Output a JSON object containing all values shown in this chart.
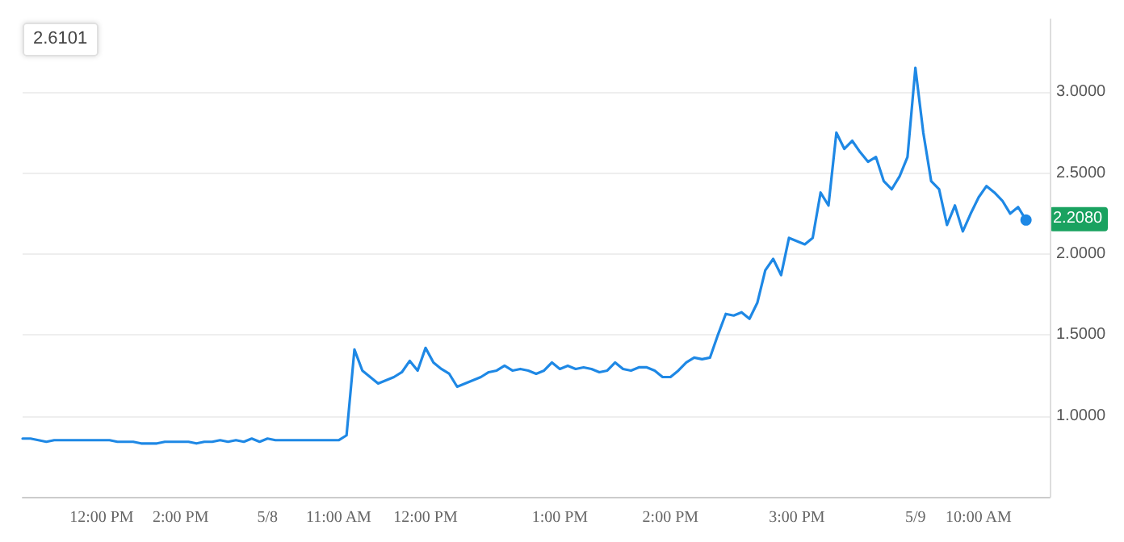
{
  "chart_data": {
    "type": "line",
    "categories": [
      null,
      null,
      null,
      null,
      null,
      null,
      null,
      null,
      null,
      null,
      "12:00 PM",
      null,
      null,
      null,
      null,
      null,
      null,
      null,
      null,
      null,
      "2:00 PM",
      null,
      null,
      null,
      null,
      null,
      null,
      null,
      null,
      null,
      null,
      "5/8",
      null,
      null,
      null,
      null,
      null,
      null,
      null,
      null,
      "11:00 AM",
      null,
      null,
      null,
      null,
      null,
      null,
      null,
      null,
      null,
      null,
      "12:00 PM",
      null,
      null,
      null,
      null,
      null,
      null,
      null,
      null,
      null,
      null,
      null,
      null,
      null,
      null,
      null,
      null,
      "1:00 PM",
      null,
      null,
      null,
      null,
      null,
      null,
      null,
      null,
      null,
      null,
      null,
      null,
      null,
      "2:00 PM",
      null,
      null,
      null,
      null,
      null,
      null,
      null,
      null,
      null,
      null,
      null,
      null,
      null,
      null,
      null,
      "3:00 PM",
      null,
      null,
      null,
      null,
      null,
      null,
      null,
      null,
      null,
      null,
      null,
      null,
      null,
      null,
      "5/9",
      null,
      null,
      null,
      null,
      null,
      null,
      null,
      "10:00 AM",
      null,
      null,
      null,
      null,
      null,
      null,
      null,
      null,
      null
    ],
    "series": [
      {
        "color": "#1e88e5",
        "values": [
          0.86,
          0.86,
          0.85,
          0.84,
          0.85,
          0.85,
          0.85,
          0.85,
          0.85,
          0.85,
          0.85,
          0.85,
          0.84,
          0.84,
          0.84,
          0.83,
          0.83,
          0.83,
          0.84,
          0.84,
          0.84,
          0.84,
          0.83,
          0.84,
          0.84,
          0.85,
          0.84,
          0.85,
          0.84,
          0.86,
          0.84,
          0.86,
          0.85,
          0.85,
          0.85,
          0.85,
          0.85,
          0.85,
          0.85,
          0.85,
          0.85,
          0.88,
          1.41,
          1.28,
          1.24,
          1.2,
          1.22,
          1.24,
          1.27,
          1.34,
          1.28,
          1.42,
          1.33,
          1.29,
          1.26,
          1.18,
          1.2,
          1.22,
          1.24,
          1.27,
          1.28,
          1.31,
          1.28,
          1.29,
          1.28,
          1.26,
          1.28,
          1.33,
          1.29,
          1.31,
          1.29,
          1.3,
          1.29,
          1.27,
          1.28,
          1.33,
          1.29,
          1.28,
          1.3,
          1.3,
          1.28,
          1.24,
          1.24,
          1.28,
          1.33,
          1.36,
          1.35,
          1.36,
          1.5,
          1.63,
          1.62,
          1.64,
          1.6,
          1.7,
          1.9,
          1.97,
          1.87,
          2.1,
          2.08,
          2.06,
          2.1,
          2.38,
          2.3,
          2.75,
          2.65,
          2.7,
          2.63,
          2.57,
          2.6,
          2.45,
          2.4,
          2.48,
          2.6,
          3.15,
          2.75,
          2.45,
          2.4,
          2.18,
          2.3,
          2.14,
          2.25,
          2.35,
          2.42,
          2.38,
          2.33,
          2.25,
          2.29,
          2.21,
          null,
          null,
          null
        ]
      }
    ],
    "ylim": [
      0.5,
      3.45
    ],
    "yticks": [
      {
        "value": 1,
        "label": "1.0000"
      },
      {
        "value": 1.5,
        "label": "1.5000"
      },
      {
        "value": 2,
        "label": "2.0000"
      },
      {
        "value": 2.5,
        "label": "2.5000"
      },
      {
        "value": 3,
        "label": "3.0000"
      }
    ],
    "grid": "y",
    "marker": "none",
    "line_style": "solid",
    "annotations": [
      "2.6101",
      "2.2080"
    ]
  }
}
